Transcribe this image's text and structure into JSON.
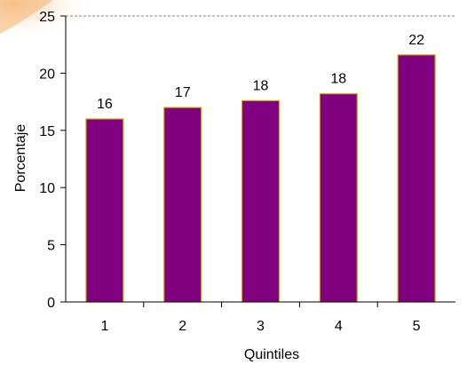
{
  "chart_data": {
    "type": "bar",
    "title": "",
    "xlabel": "Quintiles",
    "ylabel": "Porcentaje",
    "categories": [
      "1",
      "2",
      "3",
      "4",
      "5"
    ],
    "values": [
      16,
      17,
      17.6,
      18.2,
      21.6
    ],
    "data_labels": [
      "16",
      "17",
      "18",
      "18",
      "22"
    ],
    "ylim": [
      0,
      25
    ],
    "yticks": [
      "0",
      "5",
      "10",
      "15",
      "20",
      "25"
    ],
    "grid": "top-dashed-line",
    "legend": "none",
    "bar_color": "#800080",
    "bar_edge_color": "#c8b400",
    "decoration_color": "#f5b87a"
  }
}
